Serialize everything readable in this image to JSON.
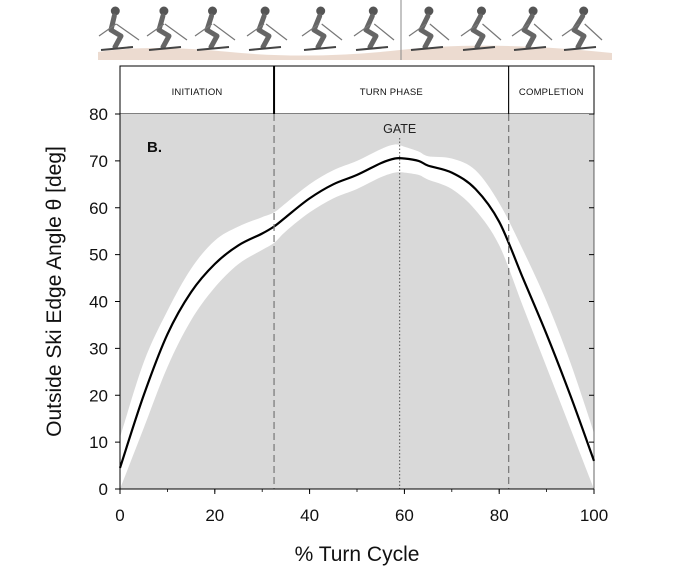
{
  "chart_data": {
    "type": "line",
    "panel_label": "B.",
    "xlabel": "% Turn Cycle",
    "ylabel": "Outside Ski Edge Angle θ [deg]",
    "xlim": [
      0,
      100
    ],
    "ylim": [
      0,
      80
    ],
    "x_ticks": [
      "0",
      "20",
      "40",
      "60",
      "80",
      "100"
    ],
    "y_ticks": [
      "0",
      "10",
      "20",
      "30",
      "40",
      "50",
      "60",
      "70",
      "80"
    ],
    "phases": [
      {
        "label": "INITIATION",
        "start": 0,
        "end": 32.5
      },
      {
        "label": "TURN PHASE",
        "start": 32.5,
        "end": 82
      },
      {
        "label": "COMPLETION",
        "start": 82,
        "end": 100
      }
    ],
    "annotation": {
      "label": "GATE",
      "x": 59
    },
    "series": [
      {
        "name": "mean",
        "x": [
          0,
          5,
          10,
          15,
          20,
          25,
          30,
          32.5,
          35,
          40,
          45,
          50,
          55,
          58,
          60,
          63,
          65,
          70,
          75,
          80,
          85,
          90,
          95,
          100
        ],
        "values": [
          4.5,
          20,
          33,
          42,
          48,
          52,
          54.5,
          56,
          58,
          62,
          65,
          67,
          69.5,
          70.5,
          70.5,
          70,
          69,
          67.5,
          64,
          57,
          45,
          33,
          20,
          6
        ]
      },
      {
        "name": "upper_band",
        "x": [
          0,
          5,
          10,
          15,
          20,
          25,
          30,
          32.5,
          35,
          40,
          45,
          50,
          55,
          58,
          60,
          63,
          65,
          70,
          75,
          80,
          85,
          90,
          95,
          100
        ],
        "values": [
          11,
          27,
          38,
          47,
          53,
          56,
          58,
          59,
          61,
          65,
          68,
          70,
          72.5,
          73.5,
          73,
          72,
          71,
          70.5,
          68,
          61,
          51,
          40,
          27,
          12
        ]
      },
      {
        "name": "lower_band",
        "x": [
          0,
          5,
          10,
          15,
          20,
          25,
          30,
          32.5,
          35,
          40,
          45,
          50,
          55,
          58,
          60,
          63,
          65,
          70,
          75,
          80,
          85,
          90,
          95,
          100
        ],
        "values": [
          0,
          13,
          26,
          36,
          43,
          48,
          51,
          52.5,
          55,
          59,
          62,
          64,
          66.5,
          67.5,
          67.5,
          67,
          66,
          64,
          59.5,
          52,
          39,
          26,
          13,
          0
        ]
      }
    ]
  }
}
